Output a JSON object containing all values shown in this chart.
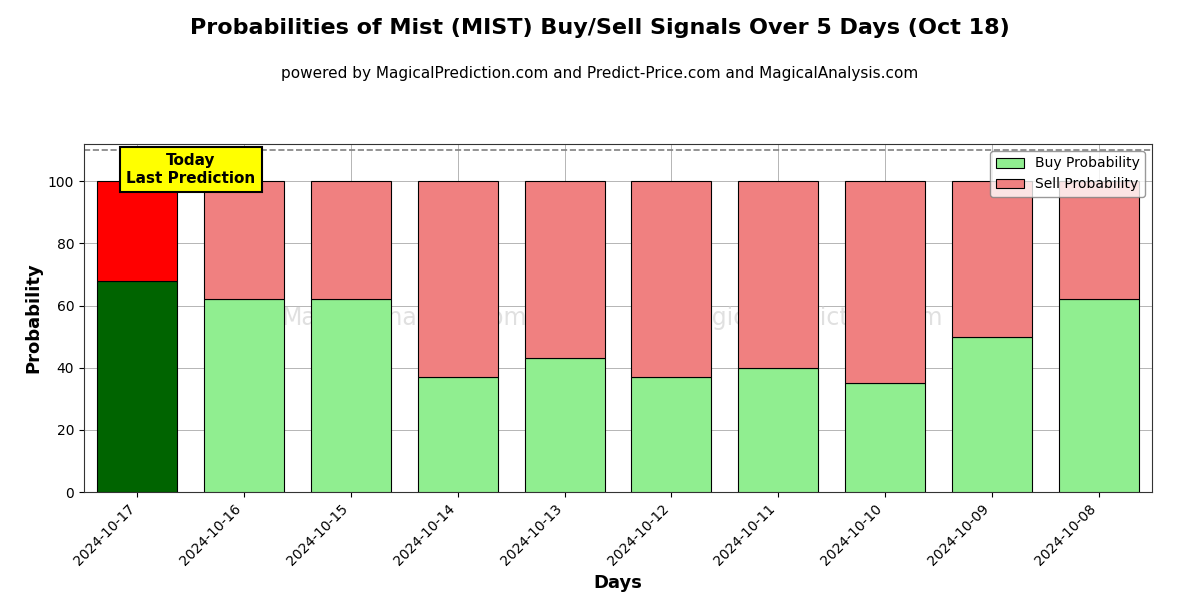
{
  "title": "Probabilities of Mist (MIST) Buy/Sell Signals Over 5 Days (Oct 18)",
  "subtitle": "powered by MagicalPrediction.com and Predict-Price.com and MagicalAnalysis.com",
  "xlabel": "Days",
  "ylabel": "Probability",
  "dates": [
    "2024-10-17",
    "2024-10-16",
    "2024-10-15",
    "2024-10-14",
    "2024-10-13",
    "2024-10-12",
    "2024-10-11",
    "2024-10-10",
    "2024-10-09",
    "2024-10-08"
  ],
  "buy_values": [
    68,
    62,
    62,
    37,
    43,
    37,
    40,
    35,
    50,
    62
  ],
  "sell_values": [
    32,
    38,
    38,
    63,
    57,
    63,
    60,
    65,
    50,
    38
  ],
  "today_buy_color": "#006400",
  "today_sell_color": "#FF0000",
  "buy_color": "#90EE90",
  "sell_color": "#F08080",
  "today_annotation_bg": "#FFFF00",
  "today_annotation_text": "Today\nLast Prediction",
  "ylim": [
    0,
    112
  ],
  "yticks": [
    0,
    20,
    40,
    60,
    80,
    100
  ],
  "dashed_line_y": 110,
  "legend_buy_label": "Buy Probability",
  "legend_sell_label": "Sell Probability",
  "background_color": "#ffffff",
  "grid_color": "#aaaaaa",
  "bar_edge_color": "#000000",
  "title_fontsize": 16,
  "subtitle_fontsize": 11,
  "axis_label_fontsize": 13,
  "tick_fontsize": 10,
  "bar_width": 0.75
}
